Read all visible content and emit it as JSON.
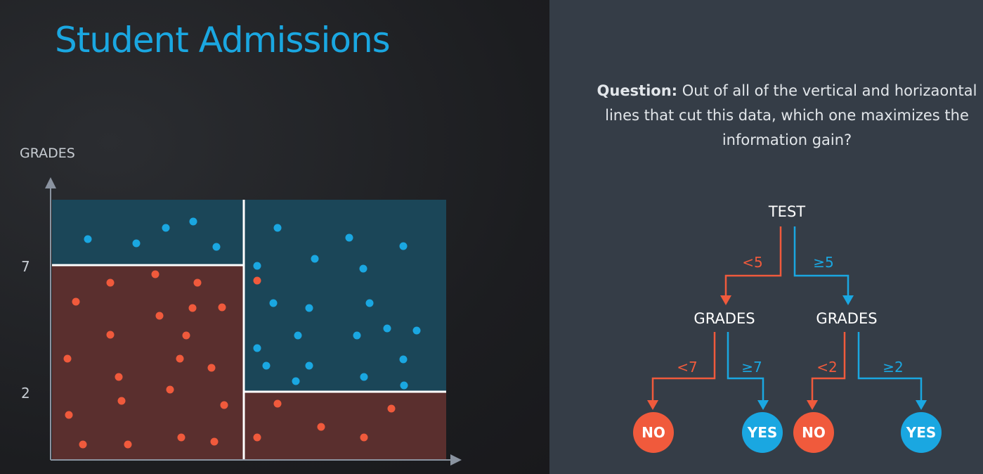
{
  "slide": {
    "title": "Student Admissions",
    "question_label": "Question:",
    "question_text": "Out of all of the vertical and horizaontal lines that cut this data, which one maximizes the information gain?"
  },
  "colors": {
    "accent_blue": "#1aa7e1",
    "accent_red": "#f05a3c",
    "region_blue": "#1b4658",
    "region_red": "#5a2f2e",
    "panel_right": "#353d47",
    "text_light": "#e2e6ea",
    "axis": "#8a93a0"
  },
  "plot": {
    "y_axis_label": "GRADES",
    "y_ticks": [
      "7",
      "2"
    ]
  },
  "tree": {
    "root": "TEST",
    "root_left_edge": "<5",
    "root_right_edge": "≥5",
    "left_node": "GRADES",
    "right_node": "GRADES",
    "left_left_edge": "<7",
    "left_right_edge": "≥7",
    "right_left_edge": "<2",
    "right_right_edge": "≥2",
    "leaves": [
      "NO",
      "YES",
      "NO",
      "YES"
    ]
  }
}
